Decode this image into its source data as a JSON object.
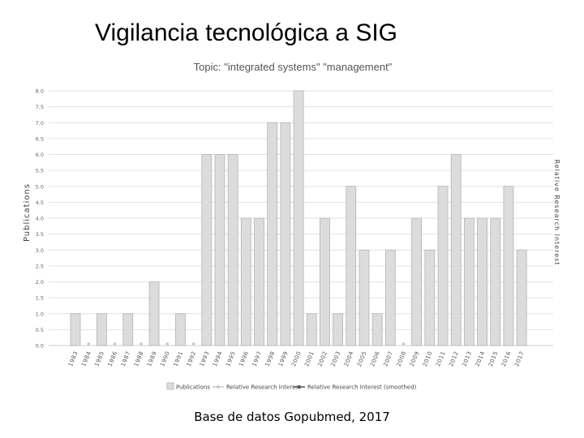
{
  "slide": {
    "title": "Vigilancia tecnológica a SIG",
    "footer": "Base de datos Gopubmed, 2017"
  },
  "chart_data": {
    "type": "bar",
    "title": "Topic: \"integrated systems\" \"management\"",
    "ylabel": "Publications",
    "ylabel_right": "Relative Research Interest",
    "ylim": [
      0,
      8
    ],
    "yticks": [
      "0.0",
      "0.5",
      "1.0",
      "1.5",
      "2.0",
      "2.5",
      "3.0",
      "3.5",
      "4.0",
      "4.5",
      "5.0",
      "5.5",
      "6.0",
      "6.5",
      "7.0",
      "7.5",
      "8.0"
    ],
    "categories": [
      "1983",
      "1984",
      "1985",
      "1986",
      "1987",
      "1988",
      "1989",
      "1990",
      "1991",
      "1992",
      "1993",
      "1994",
      "1995",
      "1996",
      "1997",
      "1998",
      "1999",
      "2000",
      "2001",
      "2002",
      "2003",
      "2004",
      "2005",
      "2006",
      "2007",
      "2008",
      "2009",
      "2010",
      "2011",
      "2012",
      "2013",
      "2014",
      "2015",
      "2016",
      "2017"
    ],
    "series": [
      {
        "name": "Publications",
        "values": [
          1,
          0,
          1,
          0,
          1,
          0,
          2,
          0,
          1,
          0,
          6,
          6,
          6,
          4,
          4,
          7,
          7,
          8,
          1,
          4,
          1,
          5,
          3,
          1,
          3,
          0,
          4,
          3,
          5,
          6,
          4,
          4,
          4,
          5,
          3
        ]
      }
    ],
    "legend": [
      "Publications",
      "Relative Research Interest",
      "Relative Research Interest (smoothed)"
    ],
    "legend_position": "bottom",
    "grid": true,
    "colors": {
      "bar_fill": "#dcdcdc",
      "bar_stroke": "#b4b4b4",
      "grid": "#e2e2e2",
      "marker": "#c8c8c8",
      "smoothed": "#555555"
    }
  }
}
